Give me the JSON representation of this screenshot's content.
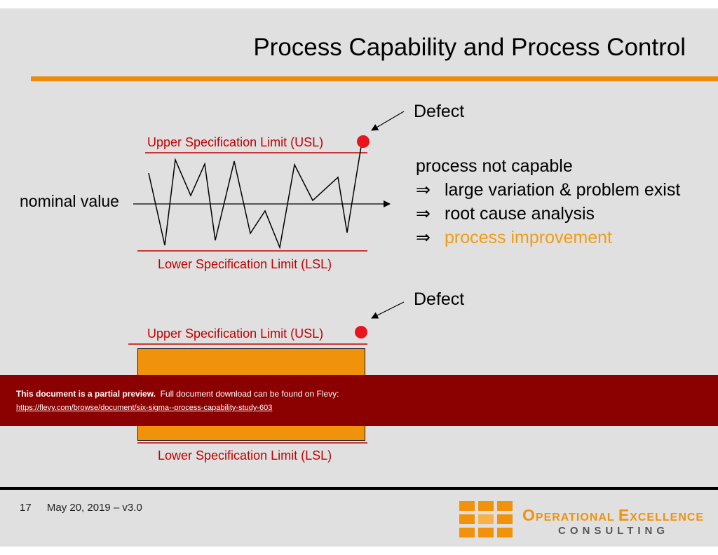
{
  "slide": {
    "title": "Process Capability and Process Control"
  },
  "top_diagram": {
    "usl_label": "Upper Specification Limit (USL)",
    "lsl_label": "Lower Specification Limit (LSL)",
    "nominal_label": "nominal value",
    "defect_label": "Defect"
  },
  "bullets": {
    "heading": "process not capable",
    "arrow": "⇒",
    "items": [
      "large variation & problem exist",
      "root cause analysis",
      "process improvement"
    ]
  },
  "bottom_diagram": {
    "usl_label": "Upper Specification Limit (USL)",
    "lsl_label": "Lower Specification Limit (LSL)",
    "defect_label": "Defect"
  },
  "banner": {
    "bold_text": "This document is a partial preview.",
    "text": "Full document download can be found on Flevy:",
    "link": "https://flevy.com/browse/document/six-sigma--process-capability-study-603"
  },
  "footer": {
    "page_number": "17",
    "date_version": "May 20, 2019 – v3.0"
  },
  "logo": {
    "line1_o": "O",
    "line1_rest1": "PERATIONAL ",
    "line1_e": "E",
    "line1_rest2": "XCELLENCE",
    "line2": "CONSULTING"
  },
  "colors": {
    "accent_orange": "#ee8a0b",
    "spec_limit_red": "#c00000",
    "defect_red": "#e8141e",
    "banner_red": "#8b0000",
    "box_orange": "#f0920b"
  }
}
